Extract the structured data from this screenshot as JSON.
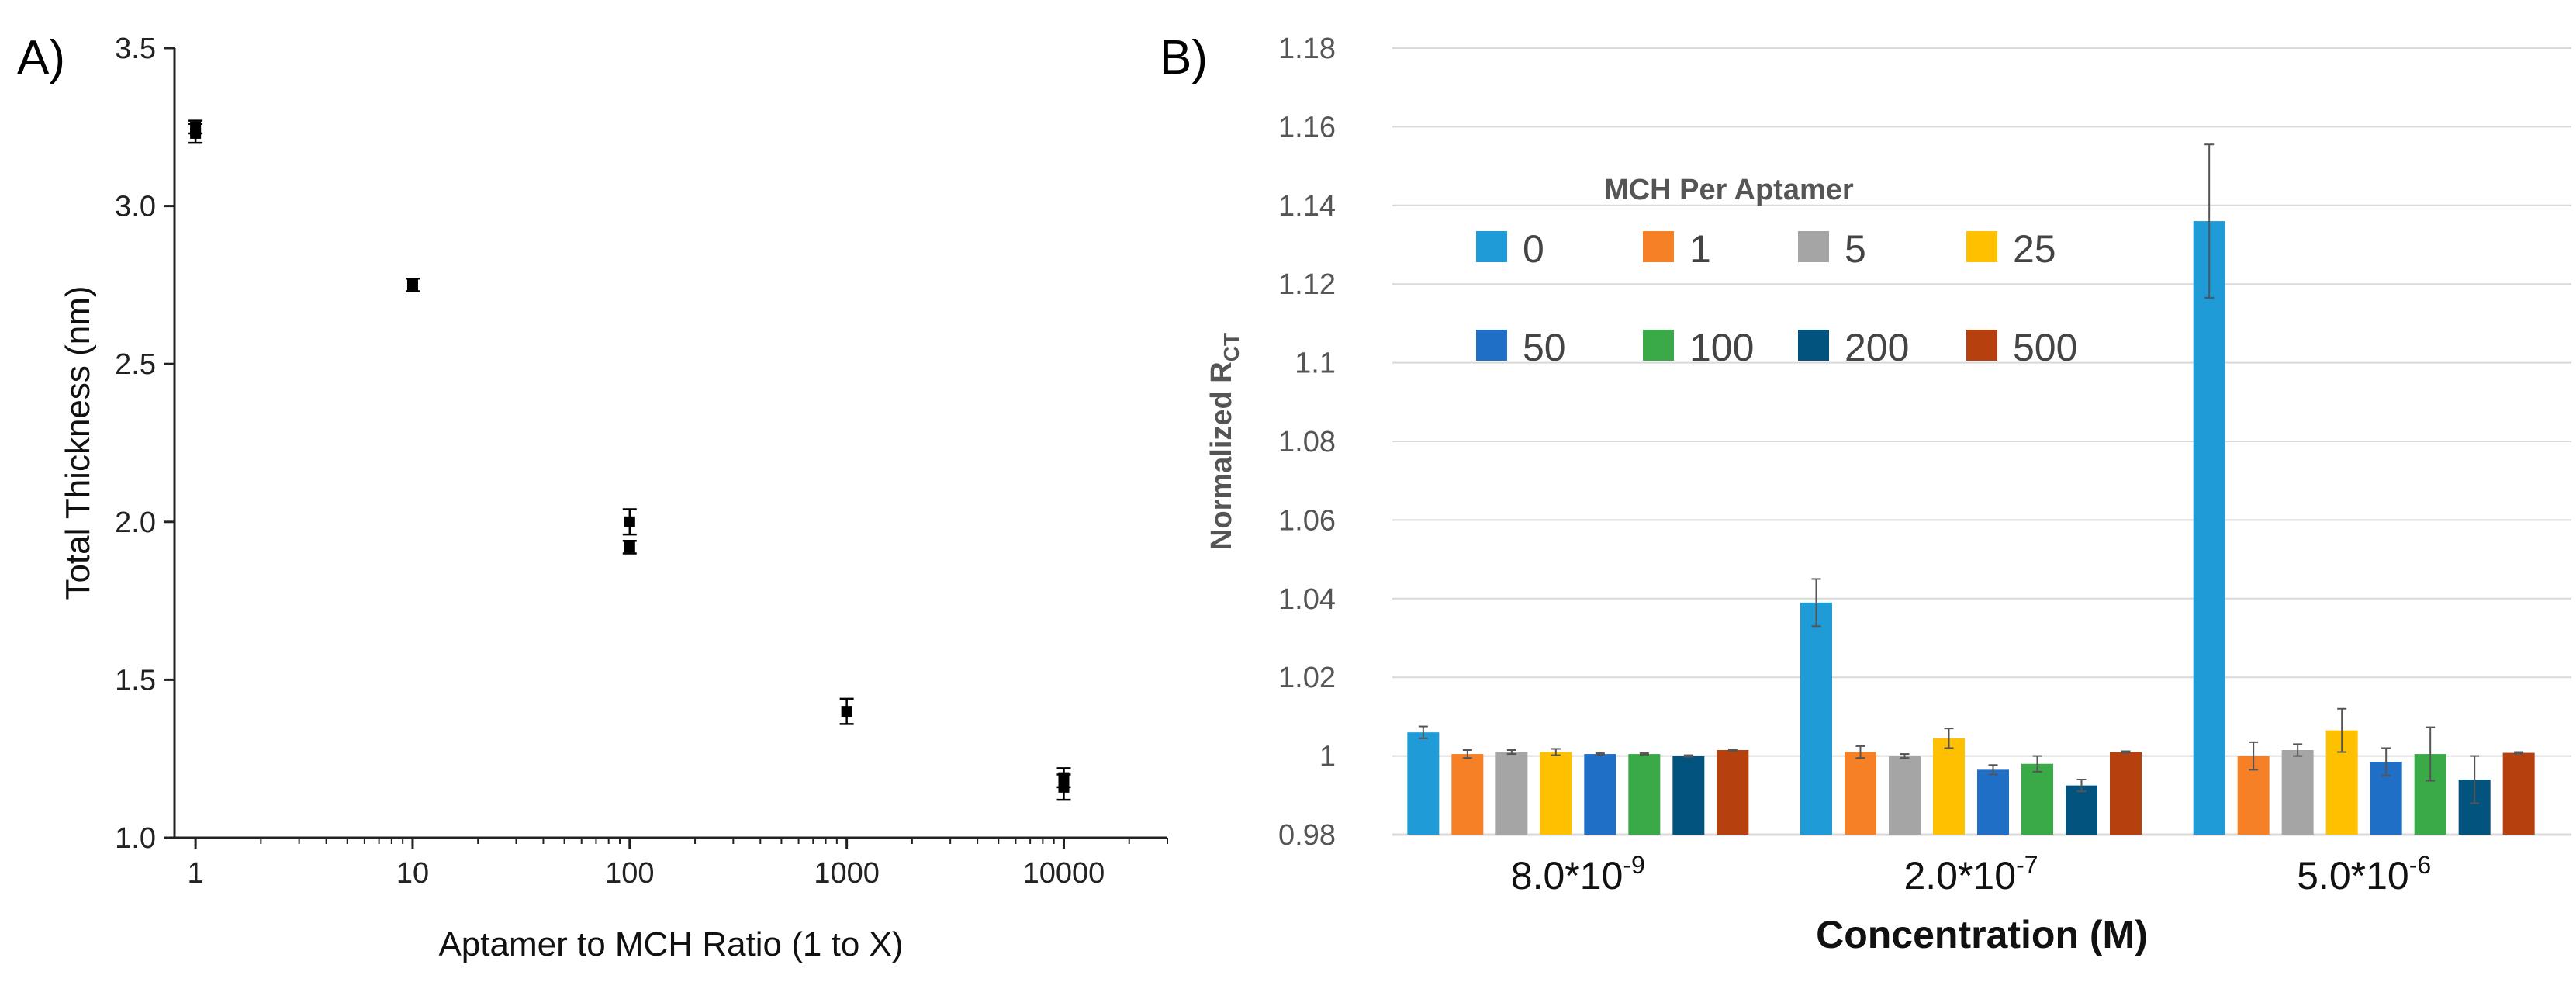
{
  "chart_data": [
    {
      "type": "scatter",
      "panel_label": "A)",
      "xlabel": "Aptamer to MCH Ratio (1 to X)",
      "ylabel": "Total Thickness (nm)",
      "xscale": "log",
      "xlim": [
        0.8,
        30000
      ],
      "ylim": [
        1.0,
        3.5
      ],
      "xticks": [
        1,
        10,
        100,
        1000,
        10000
      ],
      "xtick_labels": [
        "1",
        "10",
        "100",
        "1000",
        "10000"
      ],
      "yticks": [
        1.0,
        1.5,
        2.0,
        2.5,
        3.0,
        3.5
      ],
      "ytick_labels": [
        "1.0",
        "1.5",
        "2.0",
        "2.5",
        "3.0",
        "3.5"
      ],
      "grid": false,
      "marker_color": "#000000",
      "points": [
        {
          "x": 1,
          "y": 3.25,
          "err": 0.02
        },
        {
          "x": 1,
          "y": 3.23,
          "err": 0.03
        },
        {
          "x": 10,
          "y": 2.75,
          "err": 0.02
        },
        {
          "x": 100,
          "y": 2.0,
          "err": 0.04
        },
        {
          "x": 100,
          "y": 1.92,
          "err": 0.02
        },
        {
          "x": 1000,
          "y": 1.4,
          "err": 0.04
        },
        {
          "x": 10000,
          "y": 1.19,
          "err": 0.03
        },
        {
          "x": 10000,
          "y": 1.16,
          "err": 0.04
        }
      ]
    },
    {
      "type": "bar",
      "panel_label": "B)",
      "xlabel": "Concentration (M)",
      "ylabel_main": "Normalized R",
      "ylabel_sub": "CT",
      "ylim": [
        0.98,
        1.18
      ],
      "yticks": [
        0.98,
        1.0,
        1.02,
        1.04,
        1.06,
        1.08,
        1.1,
        1.12,
        1.14,
        1.16,
        1.18
      ],
      "ytick_labels": [
        "0.98",
        "1",
        "1.02",
        "1.04",
        "1.06",
        "1.08",
        "1.1",
        "1.12",
        "1.14",
        "1.16",
        "1.18"
      ],
      "grid": true,
      "grid_color": "#d9d9d9",
      "categories": [
        {
          "base": "8.0*10",
          "exp": "-9"
        },
        {
          "base": "2.0*10",
          "exp": "-7"
        },
        {
          "base": "5.0*10",
          "exp": "-6"
        }
      ],
      "legend_title": "MCH Per Aptamer",
      "legend_position": "top-center",
      "series": [
        {
          "name": "0",
          "color": "#1f9bd7",
          "values": [
            1.006,
            1.039,
            1.136
          ],
          "errors": [
            0.0015,
            0.006,
            0.0195
          ]
        },
        {
          "name": "1",
          "color": "#f58025",
          "values": [
            1.0005,
            1.001,
            1.0
          ],
          "errors": [
            0.001,
            0.0015,
            0.0035
          ]
        },
        {
          "name": "5",
          "color": "#a5a5a5",
          "values": [
            1.001,
            1.0,
            1.0015
          ],
          "errors": [
            0.0005,
            0.0005,
            0.0015
          ]
        },
        {
          "name": "25",
          "color": "#ffc000",
          "values": [
            1.001,
            1.0045,
            1.0065
          ],
          "errors": [
            0.0008,
            0.0025,
            0.0055
          ]
        },
        {
          "name": "50",
          "color": "#1f6fc6",
          "values": [
            1.0005,
            0.9965,
            0.9985
          ],
          "errors": [
            0.0002,
            0.0012,
            0.0035
          ]
        },
        {
          "name": "100",
          "color": "#3aaa48",
          "values": [
            1.0005,
            0.998,
            1.0005
          ],
          "errors": [
            0.0002,
            0.002,
            0.0068
          ]
        },
        {
          "name": "200",
          "color": "#03537f",
          "values": [
            1.0,
            0.9925,
            0.994
          ],
          "errors": [
            0.0002,
            0.0015,
            0.006
          ]
        },
        {
          "name": "500",
          "color": "#b7410e",
          "values": [
            1.0015,
            1.001,
            1.0008
          ],
          "errors": [
            0.0002,
            0.0002,
            0.0002
          ]
        }
      ]
    }
  ]
}
